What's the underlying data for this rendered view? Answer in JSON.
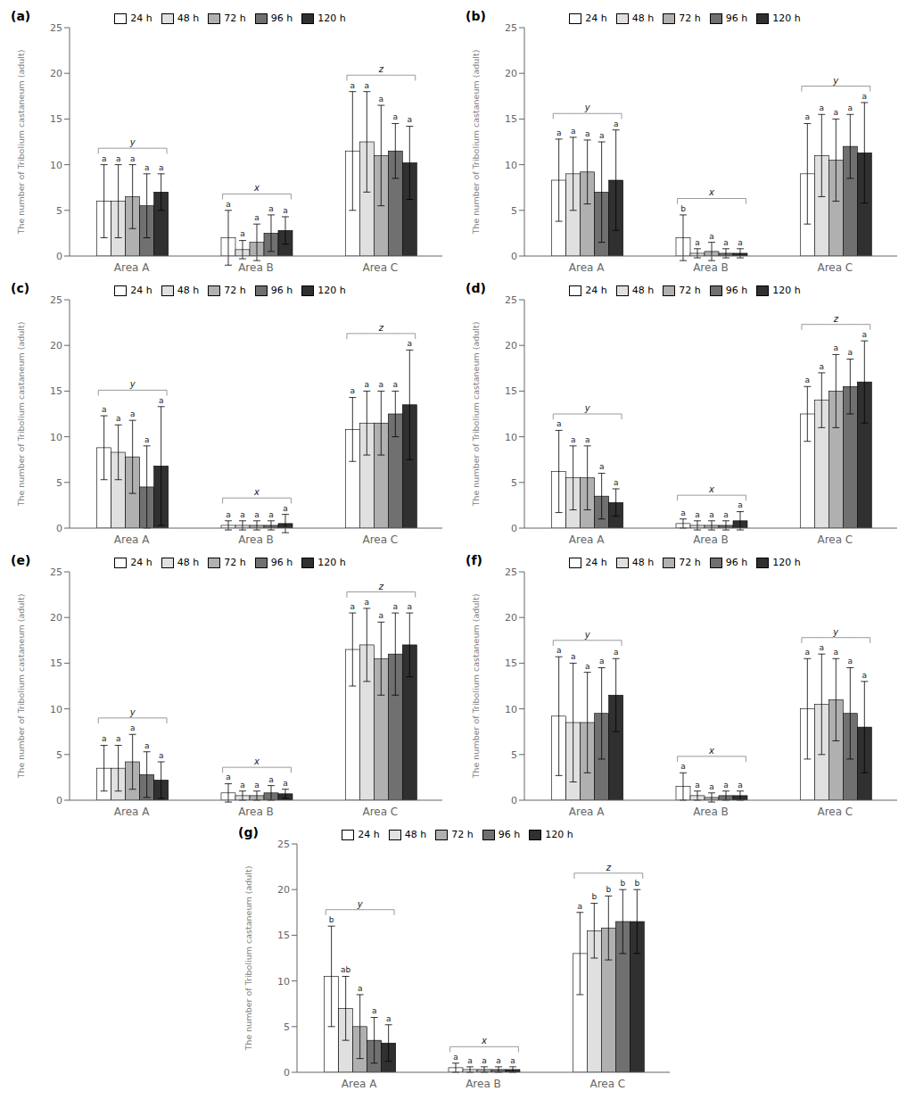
{
  "chart_data": [
    {
      "type": "bar",
      "title": "(a)",
      "y_label": "The number of Tribolium castaneum (adult)",
      "categories": [
        "Area A",
        "Area B",
        "Area C"
      ],
      "annotations": [
        "y",
        "x",
        "z"
      ],
      "ylim": [
        0,
        25
      ],
      "yticks": [
        0,
        5,
        10,
        15,
        20,
        25
      ],
      "grid": false,
      "legend": "top",
      "series": [
        {
          "name": "24 h",
          "color": "white",
          "values": [
            6.0,
            2.0,
            11.5
          ],
          "errors": [
            4.0,
            3.0,
            6.5
          ],
          "annotations": [
            "a",
            "a",
            "a"
          ]
        },
        {
          "name": "48 h",
          "color": "#e0e0e0",
          "values": [
            6.0,
            0.7,
            12.5
          ],
          "errors": [
            4.0,
            1.0,
            5.5
          ],
          "annotations": [
            "a",
            "a",
            "a"
          ]
        },
        {
          "name": "72 h",
          "color": "#b0b0b0",
          "values": [
            6.5,
            1.5,
            11.0
          ],
          "errors": [
            3.5,
            2.0,
            5.5
          ],
          "annotations": [
            "a",
            "a",
            "a"
          ]
        },
        {
          "name": "96 h",
          "color": "#707070",
          "values": [
            5.5,
            2.5,
            11.5
          ],
          "errors": [
            3.5,
            2.0,
            3.0
          ],
          "annotations": [
            "a",
            "a",
            "a"
          ]
        },
        {
          "name": "120 h",
          "color": "#303030",
          "values": [
            7.0,
            2.8,
            10.2
          ],
          "errors": [
            2.0,
            1.5,
            4.0
          ],
          "annotations": [
            "a",
            "a",
            "a"
          ]
        }
      ]
    },
    {
      "type": "bar",
      "title": "(b)",
      "y_label": "The number of Tribolium castaneum (adult)",
      "categories": [
        "Area A",
        "Area B",
        "Area C"
      ],
      "annotations": [
        "y",
        "x",
        "y"
      ],
      "ylim": [
        0,
        25
      ],
      "yticks": [
        0,
        5,
        10,
        15,
        20,
        25
      ],
      "grid": false,
      "legend": "top",
      "series": [
        {
          "name": "24 h",
          "color": "white",
          "values": [
            8.3,
            2.0,
            9.0
          ],
          "errors": [
            4.5,
            2.5,
            5.5
          ],
          "annotations": [
            "a",
            "b",
            "a"
          ]
        },
        {
          "name": "48 h",
          "color": "#e0e0e0",
          "values": [
            9.0,
            0.3,
            11.0
          ],
          "errors": [
            4.0,
            0.5,
            4.5
          ],
          "annotations": [
            "a",
            "a",
            "a"
          ]
        },
        {
          "name": "72 h",
          "color": "#b0b0b0",
          "values": [
            9.2,
            0.5,
            10.5
          ],
          "errors": [
            3.5,
            1.0,
            4.5
          ],
          "annotations": [
            "a",
            "a",
            "a"
          ]
        },
        {
          "name": "96 h",
          "color": "#707070",
          "values": [
            7.0,
            0.3,
            12.0
          ],
          "errors": [
            5.5,
            0.5,
            3.5
          ],
          "annotations": [
            "a",
            "a",
            "a"
          ]
        },
        {
          "name": "120 h",
          "color": "#303030",
          "values": [
            8.3,
            0.3,
            11.3
          ],
          "errors": [
            5.5,
            0.5,
            5.5
          ],
          "annotations": [
            "a",
            "a",
            "a"
          ]
        }
      ]
    },
    {
      "type": "bar",
      "title": "(c)",
      "y_label": "The number of Tribolium castaneum (adult)",
      "categories": [
        "Area A",
        "Area B",
        "Area C"
      ],
      "annotations": [
        "y",
        "x",
        "z"
      ],
      "ylim": [
        0,
        25
      ],
      "yticks": [
        0,
        5,
        10,
        15,
        20,
        25
      ],
      "grid": false,
      "legend": "top",
      "series": [
        {
          "name": "24 h",
          "color": "white",
          "values": [
            8.8,
            0.3,
            10.8
          ],
          "errors": [
            3.5,
            0.5,
            3.5
          ],
          "annotations": [
            "a",
            "a",
            "a"
          ]
        },
        {
          "name": "48 h",
          "color": "#e0e0e0",
          "values": [
            8.3,
            0.3,
            11.5
          ],
          "errors": [
            3.0,
            0.5,
            3.5
          ],
          "annotations": [
            "a",
            "a",
            "a"
          ]
        },
        {
          "name": "72 h",
          "color": "#b0b0b0",
          "values": [
            7.8,
            0.3,
            11.5
          ],
          "errors": [
            4.0,
            0.5,
            3.5
          ],
          "annotations": [
            "a",
            "a",
            "a"
          ]
        },
        {
          "name": "96 h",
          "color": "#707070",
          "values": [
            4.5,
            0.3,
            12.5
          ],
          "errors": [
            4.5,
            0.5,
            2.5
          ],
          "annotations": [
            "a",
            "a",
            "a"
          ]
        },
        {
          "name": "120 h",
          "color": "#303030",
          "values": [
            6.8,
            0.5,
            13.5
          ],
          "errors": [
            6.5,
            1.0,
            6.0
          ],
          "annotations": [
            "a",
            "a",
            "a"
          ]
        }
      ]
    },
    {
      "type": "bar",
      "title": "(d)",
      "y_label": "The number of Tribolium castaneum (adult)",
      "categories": [
        "Area A",
        "Area B",
        "Area C"
      ],
      "annotations": [
        "y",
        "x",
        "z"
      ],
      "ylim": [
        0,
        25
      ],
      "yticks": [
        0,
        5,
        10,
        15,
        20,
        25
      ],
      "grid": false,
      "legend": "top",
      "series": [
        {
          "name": "24 h",
          "color": "white",
          "values": [
            6.2,
            0.5,
            12.5
          ],
          "errors": [
            4.5,
            0.5,
            3.0
          ],
          "annotations": [
            "a",
            "a",
            "a"
          ]
        },
        {
          "name": "48 h",
          "color": "#e0e0e0",
          "values": [
            5.5,
            0.3,
            14.0
          ],
          "errors": [
            3.5,
            0.5,
            3.0
          ],
          "annotations": [
            "a",
            "a",
            "a"
          ]
        },
        {
          "name": "72 h",
          "color": "#b0b0b0",
          "values": [
            5.5,
            0.3,
            15.0
          ],
          "errors": [
            3.5,
            0.5,
            4.0
          ],
          "annotations": [
            "a",
            "a",
            "a"
          ]
        },
        {
          "name": "96 h",
          "color": "#707070",
          "values": [
            3.5,
            0.3,
            15.5
          ],
          "errors": [
            2.5,
            0.5,
            3.0
          ],
          "annotations": [
            "a",
            "a",
            "a"
          ]
        },
        {
          "name": "120 h",
          "color": "#303030",
          "values": [
            2.8,
            0.8,
            16.0
          ],
          "errors": [
            1.5,
            1.0,
            4.5
          ],
          "annotations": [
            "a",
            "a",
            "a"
          ]
        }
      ]
    },
    {
      "type": "bar",
      "title": "(e)",
      "y_label": "The number of Tribolium castaneum (adult)",
      "categories": [
        "Area A",
        "Area B",
        "Area C"
      ],
      "annotations": [
        "y",
        "x",
        "z"
      ],
      "ylim": [
        0,
        25
      ],
      "yticks": [
        0,
        5,
        10,
        15,
        20,
        25
      ],
      "grid": false,
      "legend": "top",
      "series": [
        {
          "name": "24 h",
          "color": "white",
          "values": [
            3.5,
            0.8,
            16.5
          ],
          "errors": [
            2.5,
            1.0,
            4.0
          ],
          "annotations": [
            "a",
            "a",
            "a"
          ]
        },
        {
          "name": "48 h",
          "color": "#e0e0e0",
          "values": [
            3.5,
            0.5,
            17.0
          ],
          "errors": [
            2.5,
            0.5,
            4.0
          ],
          "annotations": [
            "a",
            "a",
            "a"
          ]
        },
        {
          "name": "72 h",
          "color": "#b0b0b0",
          "values": [
            4.2,
            0.5,
            15.5
          ],
          "errors": [
            3.0,
            0.5,
            4.0
          ],
          "annotations": [
            "a",
            "a",
            "a"
          ]
        },
        {
          "name": "96 h",
          "color": "#707070",
          "values": [
            2.8,
            0.8,
            16.0
          ],
          "errors": [
            2.5,
            0.8,
            4.5
          ],
          "annotations": [
            "a",
            "a",
            "a"
          ]
        },
        {
          "name": "120 h",
          "color": "#303030",
          "values": [
            2.2,
            0.7,
            17.0
          ],
          "errors": [
            2.0,
            0.5,
            3.5
          ],
          "annotations": [
            "a",
            "a",
            "a"
          ]
        }
      ]
    },
    {
      "type": "bar",
      "title": "(f)",
      "y_label": "The number of Tribolium castaneum (adult)",
      "categories": [
        "Area A",
        "Area B",
        "Area C"
      ],
      "annotations": [
        "y",
        "x",
        "y"
      ],
      "ylim": [
        0,
        25
      ],
      "yticks": [
        0,
        5,
        10,
        15,
        20,
        25
      ],
      "grid": false,
      "legend": "top",
      "series": [
        {
          "name": "24 h",
          "color": "white",
          "values": [
            9.2,
            1.5,
            10.0
          ],
          "errors": [
            6.5,
            1.5,
            5.5
          ],
          "annotations": [
            "a",
            "a",
            "a"
          ]
        },
        {
          "name": "48 h",
          "color": "#e0e0e0",
          "values": [
            8.5,
            0.5,
            10.5
          ],
          "errors": [
            6.5,
            0.5,
            5.5
          ],
          "annotations": [
            "a",
            "a",
            "a"
          ]
        },
        {
          "name": "72 h",
          "color": "#b0b0b0",
          "values": [
            8.5,
            0.3,
            11.0
          ],
          "errors": [
            5.5,
            0.5,
            4.5
          ],
          "annotations": [
            "a",
            "a",
            "a"
          ]
        },
        {
          "name": "96 h",
          "color": "#707070",
          "values": [
            9.5,
            0.5,
            9.5
          ],
          "errors": [
            5.0,
            0.5,
            5.0
          ],
          "annotations": [
            "a",
            "a",
            "a"
          ]
        },
        {
          "name": "120 h",
          "color": "#303030",
          "values": [
            11.5,
            0.5,
            8.0
          ],
          "errors": [
            4.0,
            0.5,
            5.0
          ],
          "annotations": [
            "a",
            "a",
            "a"
          ]
        }
      ]
    },
    {
      "type": "bar",
      "title": "(g)",
      "y_label": "The number of Tribolium castaneum (adult)",
      "categories": [
        "Area A",
        "Area B",
        "Area C"
      ],
      "annotations": [
        "y",
        "x",
        "z"
      ],
      "ylim": [
        0,
        25
      ],
      "yticks": [
        0,
        5,
        10,
        15,
        20,
        25
      ],
      "grid": false,
      "legend": "top",
      "series": [
        {
          "name": "24 h",
          "color": "white",
          "values": [
            10.5,
            0.5,
            13.0
          ],
          "errors": [
            5.5,
            0.5,
            4.5
          ],
          "annotations": [
            "b",
            "a",
            "a"
          ]
        },
        {
          "name": "48 h",
          "color": "#e0e0e0",
          "values": [
            7.0,
            0.3,
            15.5
          ],
          "errors": [
            3.5,
            0.3,
            3.0
          ],
          "annotations": [
            "ab",
            "a",
            "b"
          ]
        },
        {
          "name": "72 h",
          "color": "#b0b0b0",
          "values": [
            5.0,
            0.3,
            15.8
          ],
          "errors": [
            3.5,
            0.3,
            3.5
          ],
          "annotations": [
            "a",
            "a",
            "b"
          ]
        },
        {
          "name": "96 h",
          "color": "#707070",
          "values": [
            3.5,
            0.3,
            16.5
          ],
          "errors": [
            2.5,
            0.3,
            3.5
          ],
          "annotations": [
            "a",
            "a",
            "b"
          ]
        },
        {
          "name": "120 h",
          "color": "#303030",
          "values": [
            3.2,
            0.3,
            16.5
          ],
          "errors": [
            2.0,
            0.3,
            3.5
          ],
          "annotations": [
            "a",
            "a",
            "b"
          ]
        }
      ]
    }
  ]
}
